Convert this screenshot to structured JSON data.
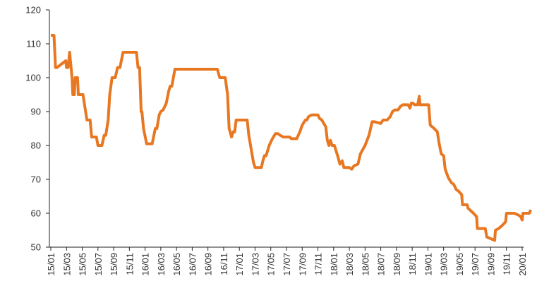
{
  "chart_data": {
    "type": "line",
    "title": "",
    "xlabel": "",
    "ylabel": "",
    "ylim": [
      50,
      120
    ],
    "yticks": [
      50,
      60,
      70,
      80,
      90,
      100,
      110,
      120
    ],
    "xlim": [
      0,
      60
    ],
    "xticks": [
      {
        "x": 0,
        "label": "15/01"
      },
      {
        "x": 2,
        "label": "15/03"
      },
      {
        "x": 4,
        "label": "15/05"
      },
      {
        "x": 6,
        "label": "15/07"
      },
      {
        "x": 8,
        "label": "15/09"
      },
      {
        "x": 10,
        "label": "15/11"
      },
      {
        "x": 12,
        "label": "16/01"
      },
      {
        "x": 14,
        "label": "16/03"
      },
      {
        "x": 16,
        "label": "16/05"
      },
      {
        "x": 18,
        "label": "16/07"
      },
      {
        "x": 20,
        "label": "16/09"
      },
      {
        "x": 22,
        "label": "16/11"
      },
      {
        "x": 24,
        "label": "17/01"
      },
      {
        "x": 26,
        "label": "17/03"
      },
      {
        "x": 28,
        "label": "17/05"
      },
      {
        "x": 30,
        "label": "17/07"
      },
      {
        "x": 32,
        "label": "17/09"
      },
      {
        "x": 34,
        "label": "17/11"
      },
      {
        "x": 36,
        "label": "18/01"
      },
      {
        "x": 38,
        "label": "18/03"
      },
      {
        "x": 40,
        "label": "18/05"
      },
      {
        "x": 42,
        "label": "18/07"
      },
      {
        "x": 44,
        "label": "18/09"
      },
      {
        "x": 46,
        "label": "18/11"
      },
      {
        "x": 48,
        "label": "19/01"
      },
      {
        "x": 50,
        "label": "19/03"
      },
      {
        "x": 52,
        "label": "19/05"
      },
      {
        "x": 54,
        "label": "19/07"
      },
      {
        "x": 56,
        "label": "19/09"
      },
      {
        "x": 58,
        "label": "19/11"
      },
      {
        "x": 60,
        "label": "20/01"
      }
    ],
    "grid": false,
    "legend": "none",
    "series": [
      {
        "color": "#E87722",
        "points": [
          [
            0.0,
            112.5
          ],
          [
            0.4,
            112.5
          ],
          [
            0.6,
            103
          ],
          [
            0.8,
            103
          ],
          [
            1.9,
            105
          ],
          [
            2.0,
            103
          ],
          [
            2.2,
            103
          ],
          [
            2.4,
            107.5
          ],
          [
            2.5,
            105
          ],
          [
            2.7,
            100
          ],
          [
            2.8,
            95
          ],
          [
            3.0,
            95
          ],
          [
            3.1,
            100
          ],
          [
            3.4,
            100
          ],
          [
            3.5,
            95
          ],
          [
            4.1,
            95
          ],
          [
            4.6,
            87.5
          ],
          [
            5.0,
            87.5
          ],
          [
            5.2,
            82.5
          ],
          [
            5.8,
            82.5
          ],
          [
            6.0,
            80
          ],
          [
            6.5,
            80
          ],
          [
            6.8,
            83
          ],
          [
            7.0,
            83
          ],
          [
            7.3,
            87.5
          ],
          [
            7.5,
            95
          ],
          [
            7.8,
            100
          ],
          [
            8.2,
            100
          ],
          [
            8.5,
            103
          ],
          [
            8.8,
            103
          ],
          [
            9.2,
            107.5
          ],
          [
            10.9,
            107.5
          ],
          [
            11.1,
            103
          ],
          [
            11.3,
            103
          ],
          [
            11.5,
            90
          ],
          [
            11.6,
            90
          ],
          [
            11.8,
            85
          ],
          [
            12.2,
            80.5
          ],
          [
            12.9,
            80.5
          ],
          [
            13.3,
            85
          ],
          [
            13.5,
            85
          ],
          [
            13.8,
            89
          ],
          [
            14.0,
            90
          ],
          [
            14.3,
            90.5
          ],
          [
            14.7,
            92.5
          ],
          [
            15.0,
            96
          ],
          [
            15.2,
            97.5
          ],
          [
            15.4,
            97.5
          ],
          [
            15.8,
            102.5
          ],
          [
            21.2,
            102.5
          ],
          [
            21.5,
            100
          ],
          [
            22.2,
            100
          ],
          [
            22.5,
            95
          ],
          [
            22.7,
            85
          ],
          [
            23.0,
            82.5
          ],
          [
            23.2,
            84
          ],
          [
            23.4,
            84
          ],
          [
            23.6,
            87.5
          ],
          [
            25.0,
            87.5
          ],
          [
            25.2,
            83
          ],
          [
            25.5,
            79
          ],
          [
            25.8,
            75
          ],
          [
            26.0,
            73.5
          ],
          [
            26.8,
            73.5
          ],
          [
            27.0,
            75.5
          ],
          [
            27.2,
            77
          ],
          [
            27.4,
            77
          ],
          [
            27.8,
            80
          ],
          [
            28.2,
            82
          ],
          [
            28.6,
            83.5
          ],
          [
            28.9,
            83.5
          ],
          [
            29.2,
            83
          ],
          [
            29.6,
            82.5
          ],
          [
            30.4,
            82.5
          ],
          [
            30.6,
            82
          ],
          [
            31.3,
            82
          ],
          [
            31.7,
            84
          ],
          [
            32.0,
            86
          ],
          [
            32.4,
            87.5
          ],
          [
            32.6,
            87.5
          ],
          [
            32.8,
            88.5
          ],
          [
            33.2,
            89
          ],
          [
            34.0,
            89
          ],
          [
            34.2,
            88
          ],
          [
            34.5,
            87.5
          ],
          [
            35.0,
            85.5
          ],
          [
            35.2,
            81.5
          ],
          [
            35.4,
            80
          ],
          [
            35.6,
            81.5
          ],
          [
            35.8,
            80
          ],
          [
            36.1,
            80
          ],
          [
            36.5,
            77
          ],
          [
            36.8,
            74.5
          ],
          [
            37.1,
            75.5
          ],
          [
            37.3,
            73.5
          ],
          [
            38.0,
            73.5
          ],
          [
            38.3,
            73
          ],
          [
            38.6,
            74
          ],
          [
            39.1,
            74.5
          ],
          [
            39.4,
            77.5
          ],
          [
            40.0,
            80
          ],
          [
            40.5,
            83
          ],
          [
            40.9,
            87
          ],
          [
            41.2,
            87
          ],
          [
            42.0,
            86.5
          ],
          [
            42.3,
            87.5
          ],
          [
            42.8,
            87.5
          ],
          [
            43.2,
            88.5
          ],
          [
            43.5,
            90
          ],
          [
            43.8,
            90.5
          ],
          [
            44.2,
            90.5
          ],
          [
            44.5,
            91.5
          ],
          [
            44.8,
            92
          ],
          [
            45.5,
            92
          ],
          [
            45.7,
            91
          ],
          [
            45.9,
            92.5
          ],
          [
            46.1,
            92.5
          ],
          [
            46.3,
            92
          ],
          [
            46.7,
            92
          ],
          [
            46.9,
            94.5
          ],
          [
            47.0,
            92
          ],
          [
            48.1,
            92
          ],
          [
            48.3,
            86
          ],
          [
            48.8,
            85
          ],
          [
            49.2,
            84
          ],
          [
            49.4,
            81
          ],
          [
            49.7,
            77.5
          ],
          [
            50.0,
            77
          ],
          [
            50.2,
            73
          ],
          [
            50.6,
            70.5
          ],
          [
            51.0,
            69
          ],
          [
            51.3,
            68.5
          ],
          [
            51.6,
            67
          ],
          [
            51.9,
            66.5
          ],
          [
            52.3,
            65.5
          ],
          [
            52.4,
            62.5
          ],
          [
            53.0,
            62.5
          ],
          [
            53.1,
            61.5
          ],
          [
            53.8,
            60
          ],
          [
            54.2,
            59
          ],
          [
            54.3,
            55.5
          ],
          [
            55.3,
            55.5
          ],
          [
            55.5,
            53
          ],
          [
            56.0,
            52.5
          ],
          [
            56.5,
            52
          ],
          [
            56.6,
            55
          ],
          [
            57.0,
            55.5
          ],
          [
            57.5,
            56.5
          ],
          [
            57.9,
            57.5
          ],
          [
            58.0,
            60
          ],
          [
            59.0,
            60
          ],
          [
            59.5,
            59.5
          ],
          [
            59.8,
            59
          ],
          [
            60.0,
            58
          ],
          [
            60.1,
            60
          ],
          [
            60.9,
            60
          ],
          [
            61.1,
            61
          ]
        ]
      }
    ]
  }
}
